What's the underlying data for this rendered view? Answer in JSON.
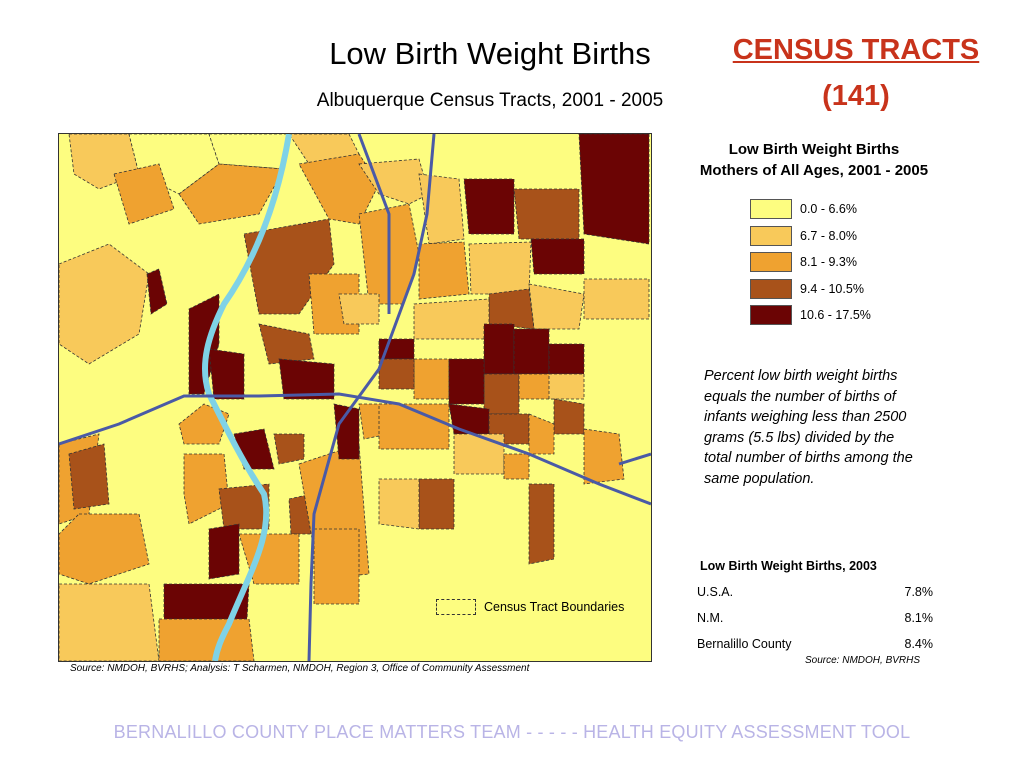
{
  "title": "Low Birth Weight Births",
  "subtitle": "Albuquerque Census Tracts, 2001 - 2005",
  "census": {
    "title": "CENSUS TRACTS",
    "count": "(141)"
  },
  "map": {
    "legend_title_line1": "Low Birth Weight Births",
    "legend_title_line2": "Mothers of All Ages, 2001 - 2005",
    "legend": [
      {
        "label": "0.0 - 6.6%",
        "color": "#fdfd80"
      },
      {
        "label": "6.7 - 8.0%",
        "color": "#f8c95a"
      },
      {
        "label": "8.1 - 9.3%",
        "color": "#efa230"
      },
      {
        "label": "9.4 - 10.5%",
        "color": "#a8521a"
      },
      {
        "label": "10.6 - 17.5%",
        "color": "#6b0404"
      }
    ],
    "boundary_label": "Census Tract Boundaries",
    "river_color": "#7fd2e6",
    "road_color": "#4a5aa6",
    "source": "Source: NMDOH, BVRHS; Analysis: T Scharmen, NMDOH, Region 3, Office of Community Assessment"
  },
  "note": "Percent low birth weight births equals the number of births of infants weighing less than 2500 grams (5.5 lbs) divided by the total number of births among the same population.",
  "table": {
    "title": "Low Birth Weight Births, 2003",
    "rows": [
      {
        "label": "U.S.A.",
        "value": "7.8%"
      },
      {
        "label": "N.M.",
        "value": "8.1%"
      },
      {
        "label": "Bernalillo County",
        "value": "8.4%"
      }
    ],
    "source": "Source: NMDOH, BVRHS"
  },
  "footer": "BERNALILLO COUNTY PLACE MATTERS TEAM  -  -  -  -  -  HEALTH EQUITY ASSESSMENT TOOL"
}
